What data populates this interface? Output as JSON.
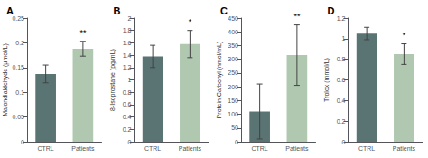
{
  "chart_data": [
    {
      "type": "bar",
      "title": "A",
      "ylabel": "Malondialdehyde (µmol/L)",
      "categories": [
        "CTRL",
        "Patients"
      ],
      "values": [
        0.137,
        0.188
      ],
      "errors": [
        0.018,
        0.015
      ],
      "colors": [
        "#5a7373",
        "#b0c8b0"
      ],
      "ylim": [
        0,
        0.25
      ],
      "yticks": [
        0,
        0.05,
        0.1,
        0.15,
        0.2,
        0.25
      ],
      "grid": false,
      "annotations": [
        {
          "text": "**",
          "category": "Patients"
        }
      ]
    },
    {
      "type": "bar",
      "title": "B",
      "ylabel": "8-Isoprostane (pg/mL)",
      "categories": [
        "CTRL",
        "Patients"
      ],
      "values": [
        1.38,
        1.58
      ],
      "errors": [
        0.18,
        0.22
      ],
      "colors": [
        "#5a7373",
        "#b0c8b0"
      ],
      "ylim": [
        0,
        2
      ],
      "yticks": [
        0,
        0.2,
        0.4,
        0.6,
        0.8,
        1,
        1.2,
        1.4,
        1.6,
        1.8,
        2
      ],
      "grid": false,
      "annotations": [
        {
          "text": "*",
          "category": "Patients"
        }
      ]
    },
    {
      "type": "bar",
      "title": "C",
      "ylabel": "Protein Carbonyl (nmol/mL)",
      "categories": [
        "CTRL",
        "Patients"
      ],
      "values": [
        110,
        315
      ],
      "errors": [
        100,
        110
      ],
      "colors": [
        "#5a7373",
        "#b0c8b0"
      ],
      "ylim": [
        0,
        450
      ],
      "yticks": [
        0,
        50,
        100,
        150,
        200,
        250,
        300,
        350,
        400,
        450
      ],
      "grid": false,
      "annotations": [
        {
          "text": "**",
          "category": "Patients"
        }
      ]
    },
    {
      "type": "bar",
      "title": "D",
      "ylabel": "Trolox (mmol/L)",
      "categories": [
        "CTRL",
        "Patients"
      ],
      "values": [
        1.05,
        0.85
      ],
      "errors": [
        0.06,
        0.1
      ],
      "colors": [
        "#5a7373",
        "#b0c8b0"
      ],
      "ylim": [
        0,
        1.2
      ],
      "yticks": [
        0,
        0.2,
        0.4,
        0.6,
        0.8,
        1,
        1.2
      ],
      "grid": false,
      "annotations": [
        {
          "text": "*",
          "category": "Patients"
        }
      ]
    }
  ]
}
